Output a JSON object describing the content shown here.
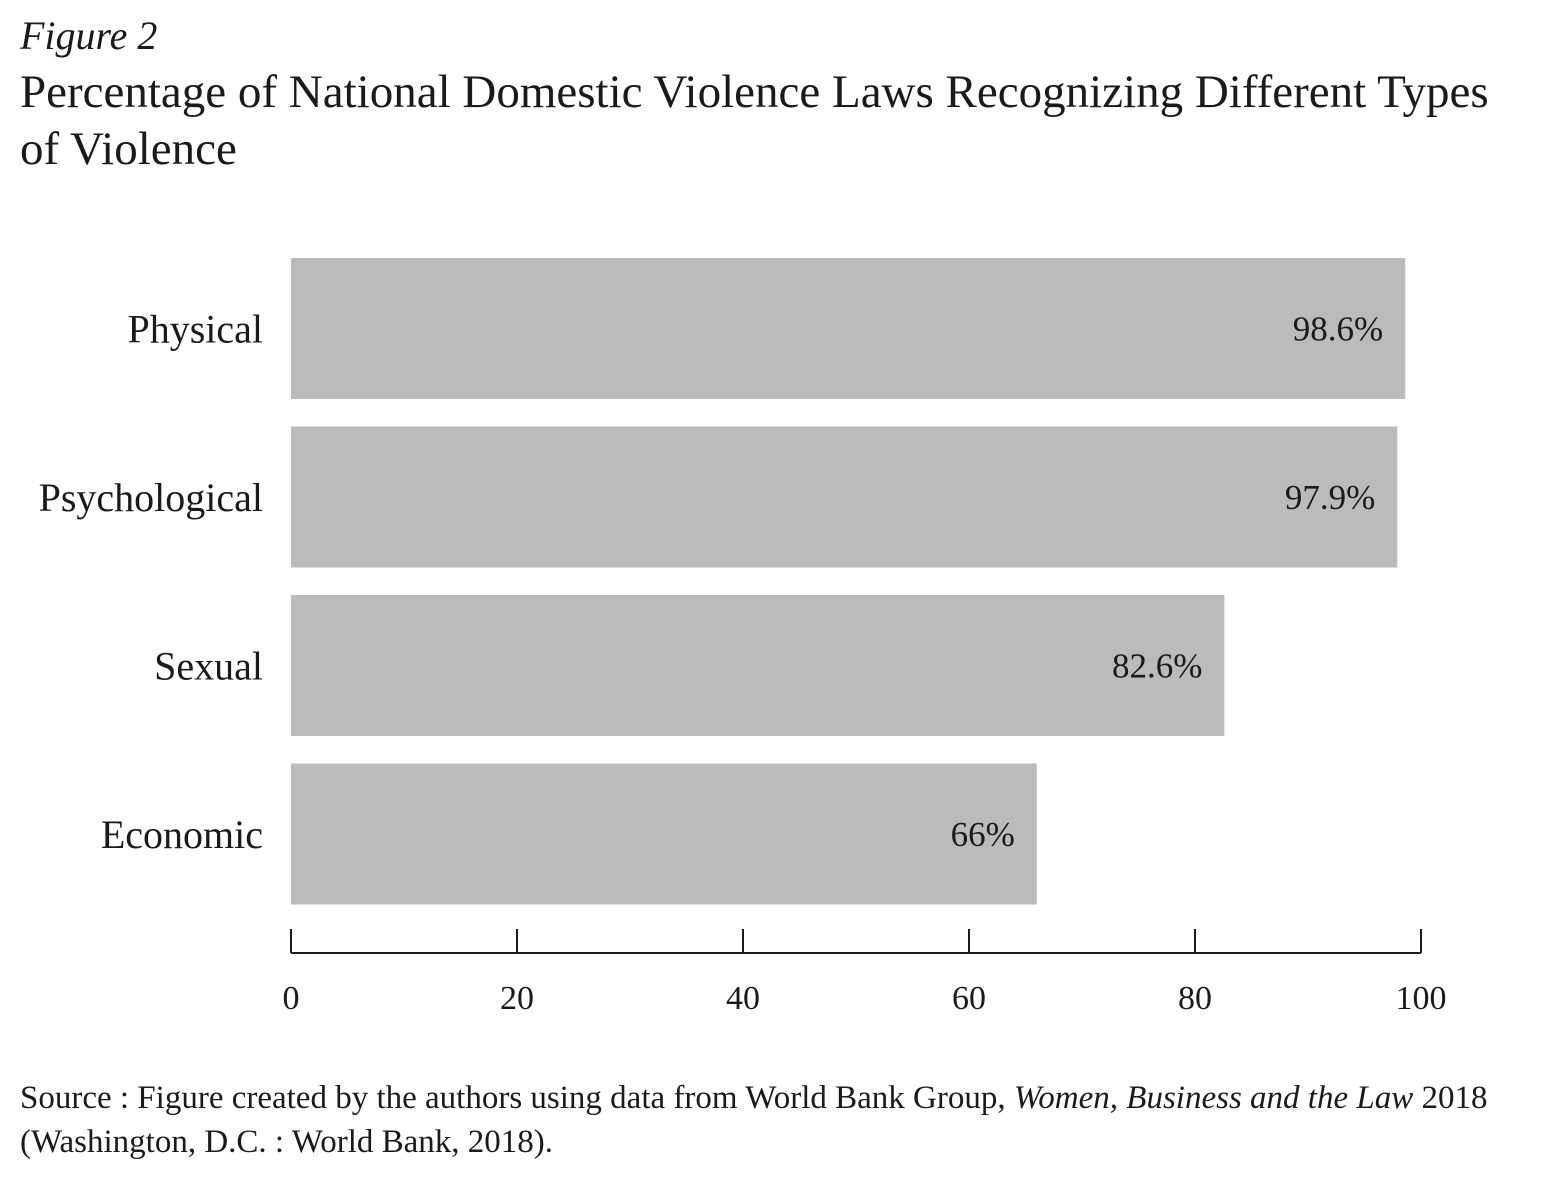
{
  "figure_label": "Figure 2",
  "chart_data": {
    "type": "bar",
    "orientation": "horizontal",
    "title": "Percentage of National Domestic Violence Laws Recognizing Different Types of Violence",
    "categories": [
      "Physical",
      "Psychological",
      "Sexual",
      "Economic"
    ],
    "values": [
      98.6,
      97.9,
      82.6,
      66
    ],
    "value_labels": [
      "98.6%",
      "97.9%",
      "82.6%",
      "66%"
    ],
    "xlim": [
      0,
      100
    ],
    "xticks": [
      0,
      20,
      40,
      60,
      80,
      100
    ],
    "xtick_labels": [
      "0",
      "20",
      "40",
      "60",
      "80",
      "100"
    ],
    "grid": false,
    "bar_color": "#bbbbbb"
  },
  "source": {
    "prefix": "Source : Figure created by the authors using data from World Bank Group, ",
    "italic_title": "Women, Business and the Law",
    "suffix": " 2018 (Washington, D.C. : World Bank, 2018)."
  }
}
